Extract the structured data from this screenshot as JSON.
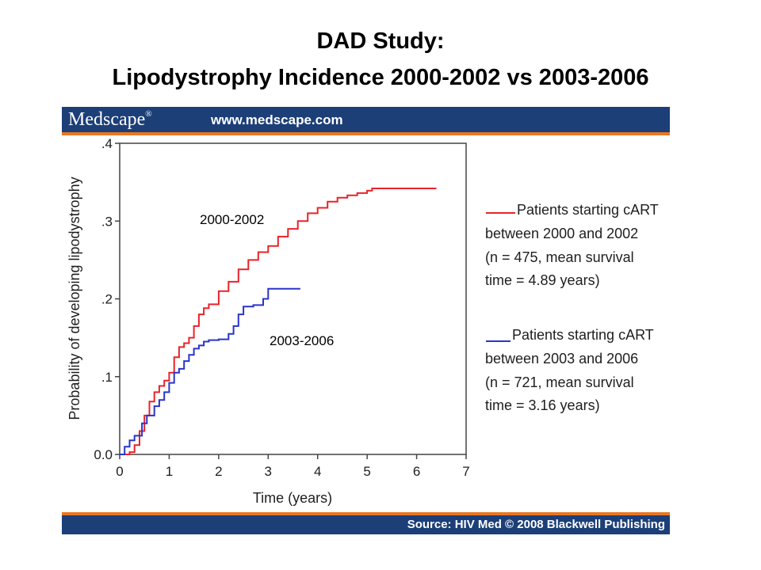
{
  "slide": {
    "title_line1": "DAD Study:",
    "title_line2": "Lipodystrophy Incidence 2000-2002 vs 2003-2006"
  },
  "banner": {
    "brand": "Medscape",
    "brand_mark": "®",
    "site": "www.medscape.com",
    "source": "Source: HIV Med © 2008 Blackwell Publishing"
  },
  "colors": {
    "series_2000_2002": "#e8232a",
    "series_2003_2006": "#2a34c8",
    "banner": "#1c3f78",
    "banner_stripe": "#e87722"
  },
  "chart_data": {
    "type": "line",
    "title": "",
    "xlabel": "Time (years)",
    "ylabel": "Probability of developing lipodystrophy",
    "xlim": [
      0,
      7
    ],
    "ylim": [
      0,
      0.4
    ],
    "xticks": [
      0,
      1,
      2,
      3,
      4,
      5,
      6,
      7
    ],
    "xtick_labels": [
      "0",
      "1",
      "2",
      "3",
      "4",
      "5",
      "6",
      "7"
    ],
    "yticks": [
      0,
      0.1,
      0.2,
      0.3,
      0.4
    ],
    "ytick_labels": [
      "0.0",
      ".1",
      ".2",
      ".3",
      ".4"
    ],
    "grid": false,
    "legend_position": "right",
    "series": [
      {
        "name": "2000-2002",
        "color": "#e8232a",
        "legend": [
          "Patients starting cART",
          "between 2000 and 2002",
          "(n = 475, mean survival",
          "time = 4.89 years)"
        ],
        "x": [
          0,
          0.2,
          0.3,
          0.4,
          0.5,
          0.6,
          0.7,
          0.8,
          0.9,
          1.0,
          1.1,
          1.2,
          1.3,
          1.4,
          1.5,
          1.6,
          1.7,
          1.8,
          2.0,
          2.2,
          2.4,
          2.6,
          2.8,
          3.0,
          3.2,
          3.4,
          3.6,
          3.8,
          4.0,
          4.2,
          4.4,
          4.6,
          4.8,
          5.0,
          5.1,
          5.5,
          6.0,
          6.4
        ],
        "y": [
          0,
          0.003,
          0.012,
          0.03,
          0.05,
          0.068,
          0.08,
          0.088,
          0.095,
          0.105,
          0.125,
          0.138,
          0.143,
          0.15,
          0.165,
          0.18,
          0.188,
          0.193,
          0.21,
          0.222,
          0.238,
          0.25,
          0.26,
          0.268,
          0.28,
          0.29,
          0.3,
          0.31,
          0.317,
          0.325,
          0.33,
          0.333,
          0.336,
          0.339,
          0.342,
          0.342,
          0.342,
          0.342
        ]
      },
      {
        "name": "2003-2006",
        "color": "#2a34c8",
        "legend": [
          "Patients starting cART",
          "between 2003 and 2006",
          "(n = 721, mean survival",
          "time = 3.16 years)"
        ],
        "x": [
          0,
          0.1,
          0.2,
          0.3,
          0.45,
          0.55,
          0.7,
          0.8,
          0.9,
          1.0,
          1.1,
          1.2,
          1.3,
          1.4,
          1.5,
          1.6,
          1.7,
          1.8,
          2.0,
          2.2,
          2.3,
          2.4,
          2.5,
          2.7,
          2.9,
          3.0,
          3.3,
          3.65
        ],
        "y": [
          0,
          0.01,
          0.018,
          0.024,
          0.04,
          0.05,
          0.062,
          0.07,
          0.08,
          0.092,
          0.105,
          0.11,
          0.12,
          0.128,
          0.136,
          0.14,
          0.145,
          0.147,
          0.148,
          0.155,
          0.165,
          0.18,
          0.19,
          0.192,
          0.2,
          0.213,
          0.213,
          0.213
        ]
      }
    ]
  }
}
